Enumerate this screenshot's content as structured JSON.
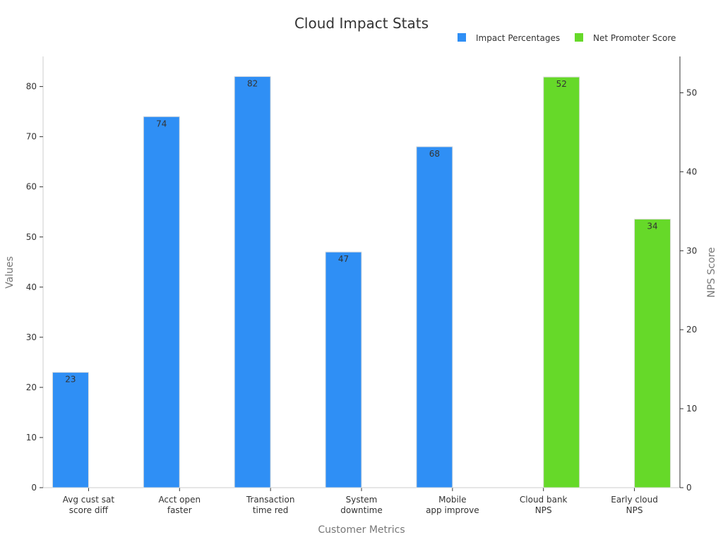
{
  "chart_data": {
    "type": "bar",
    "title": "Cloud Impact Stats",
    "xlabel": "Customer Metrics",
    "ylabel": "Values",
    "y2label": "NPS Score",
    "categories": [
      [
        "Avg cust sat",
        "score diff"
      ],
      [
        "Acct open",
        "faster"
      ],
      [
        "Transaction",
        "time red"
      ],
      [
        "System",
        "downtime"
      ],
      [
        "Mobile",
        "app improve"
      ],
      [
        "Cloud bank",
        "NPS"
      ],
      [
        "Early cloud",
        "NPS"
      ]
    ],
    "series": [
      {
        "name": "Impact Percentages",
        "axis": "left",
        "color": "#2f8ff5",
        "values": [
          23,
          74,
          82,
          47,
          68,
          null,
          null
        ]
      },
      {
        "name": "Net Promoter Score",
        "axis": "right",
        "color": "#66d929",
        "values": [
          null,
          null,
          null,
          null,
          null,
          52,
          34
        ]
      }
    ],
    "ylim": [
      0,
      86
    ],
    "y2lim": [
      0,
      54.6
    ],
    "yticks": [
      0,
      10,
      20,
      30,
      40,
      50,
      60,
      70,
      80
    ],
    "y2ticks": [
      0,
      10,
      20,
      30,
      40,
      50
    ],
    "legend_position": "top-right",
    "grid": false
  }
}
